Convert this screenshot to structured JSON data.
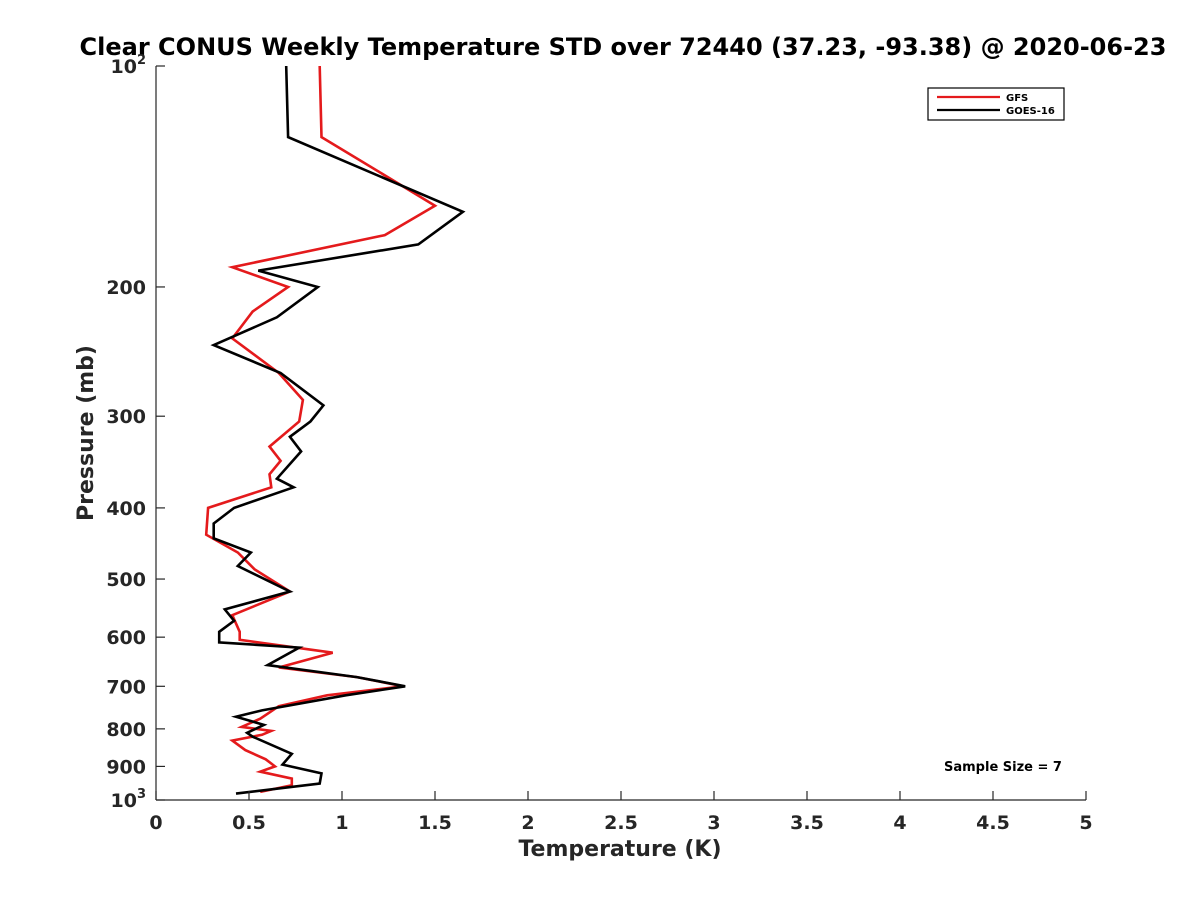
{
  "chart_data": {
    "type": "line",
    "title": "Clear CONUS Weekly Temperature STD over 72440 (37.23, -93.38) @ 2020-06-23",
    "xlabel": "Temperature (K)",
    "ylabel": "Pressure (mb)",
    "xlim": [
      0,
      5
    ],
    "ylim": [
      1000,
      100
    ],
    "yscale": "log",
    "yreversed": true,
    "xticks": [
      0,
      0.5,
      1,
      1.5,
      2,
      2.5,
      3,
      3.5,
      4,
      4.5,
      5
    ],
    "xtick_labels": [
      "0",
      "0.5",
      "1",
      "1.5",
      "2",
      "2.5",
      "3",
      "3.5",
      "4",
      "4.5",
      "5"
    ],
    "yticks": [
      100,
      200,
      300,
      400,
      500,
      600,
      700,
      800,
      900,
      1000
    ],
    "ytick_labels": [
      {
        "base": "10",
        "exp": "2"
      },
      {
        "base": "200",
        "exp": ""
      },
      {
        "base": "300",
        "exp": ""
      },
      {
        "base": "400",
        "exp": ""
      },
      {
        "base": "500",
        "exp": ""
      },
      {
        "base": "600",
        "exp": ""
      },
      {
        "base": "700",
        "exp": ""
      },
      {
        "base": "800",
        "exp": ""
      },
      {
        "base": "900",
        "exp": ""
      },
      {
        "base": "10",
        "exp": "3"
      }
    ],
    "grid": false,
    "legend_position": "top-right",
    "annotation": "Sample Size = 7",
    "series": [
      {
        "name": "GFS",
        "color": "#e41a1c",
        "points": [
          [
            0.88,
            100
          ],
          [
            0.89,
            125
          ],
          [
            1.5,
            155
          ],
          [
            1.23,
            170
          ],
          [
            0.41,
            188
          ],
          [
            0.71,
            200
          ],
          [
            0.52,
            216
          ],
          [
            0.41,
            235
          ],
          [
            0.66,
            262
          ],
          [
            0.79,
            285
          ],
          [
            0.77,
            305
          ],
          [
            0.61,
            330
          ],
          [
            0.67,
            345
          ],
          [
            0.61,
            360
          ],
          [
            0.62,
            375
          ],
          [
            0.28,
            400
          ],
          [
            0.27,
            435
          ],
          [
            0.44,
            460
          ],
          [
            0.53,
            485
          ],
          [
            0.72,
            520
          ],
          [
            0.41,
            560
          ],
          [
            0.45,
            590
          ],
          [
            0.45,
            605
          ],
          [
            0.95,
            630
          ],
          [
            0.66,
            660
          ],
          [
            1.08,
            680
          ],
          [
            1.33,
            700
          ],
          [
            0.92,
            720
          ],
          [
            0.66,
            745
          ],
          [
            0.56,
            775
          ],
          [
            0.46,
            795
          ],
          [
            0.62,
            805
          ],
          [
            0.57,
            815
          ],
          [
            0.41,
            830
          ],
          [
            0.48,
            855
          ],
          [
            0.59,
            880
          ],
          [
            0.64,
            900
          ],
          [
            0.56,
            915
          ],
          [
            0.73,
            935
          ],
          [
            0.73,
            955
          ],
          [
            0.56,
            975
          ]
        ]
      },
      {
        "name": "GOES-16",
        "color": "#000000",
        "points": [
          [
            0.7,
            100
          ],
          [
            0.71,
            125
          ],
          [
            1.65,
            158
          ],
          [
            1.41,
            175
          ],
          [
            0.55,
            190
          ],
          [
            0.87,
            200
          ],
          [
            0.65,
            220
          ],
          [
            0.31,
            240
          ],
          [
            0.67,
            262
          ],
          [
            0.9,
            290
          ],
          [
            0.83,
            305
          ],
          [
            0.72,
            320
          ],
          [
            0.78,
            335
          ],
          [
            0.65,
            365
          ],
          [
            0.74,
            375
          ],
          [
            0.42,
            400
          ],
          [
            0.31,
            420
          ],
          [
            0.31,
            440
          ],
          [
            0.51,
            460
          ],
          [
            0.44,
            480
          ],
          [
            0.72,
            520
          ],
          [
            0.37,
            550
          ],
          [
            0.42,
            570
          ],
          [
            0.34,
            590
          ],
          [
            0.34,
            610
          ],
          [
            0.77,
            620
          ],
          [
            0.6,
            655
          ],
          [
            1.08,
            680
          ],
          [
            1.34,
            700
          ],
          [
            1.02,
            720
          ],
          [
            0.57,
            755
          ],
          [
            0.43,
            770
          ],
          [
            0.58,
            790
          ],
          [
            0.49,
            810
          ],
          [
            0.52,
            820
          ],
          [
            0.73,
            865
          ],
          [
            0.68,
            895
          ],
          [
            0.89,
            920
          ],
          [
            0.88,
            950
          ],
          [
            0.43,
            980
          ]
        ]
      }
    ]
  }
}
